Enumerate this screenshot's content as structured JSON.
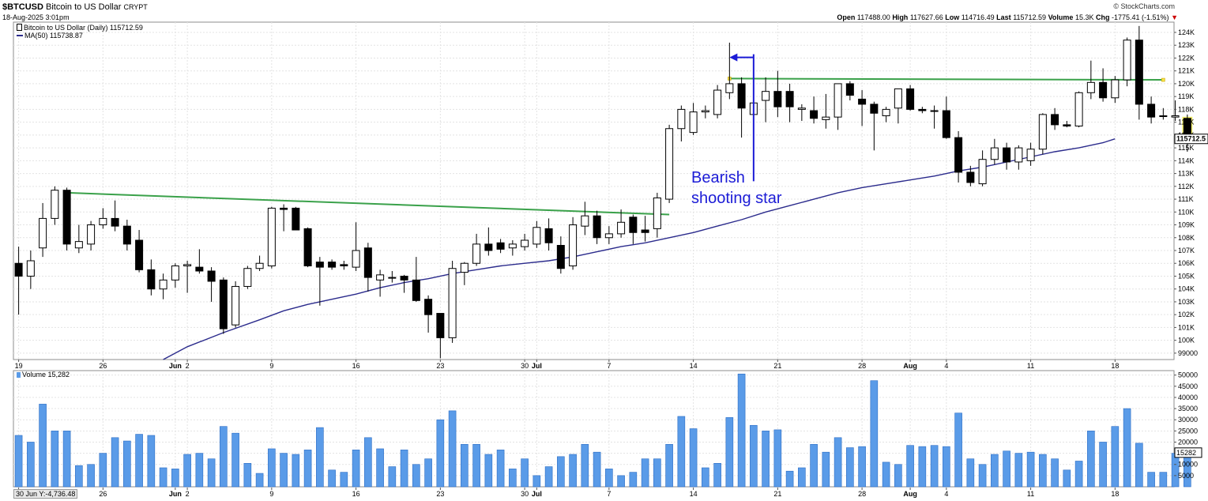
{
  "header": {
    "symbol": "$BTCUSD",
    "name": "Bitcoin to US Dollar",
    "exchange": "CRYPT",
    "date": "18-Aug-2025 3:01pm",
    "brand": "© StockCharts.com",
    "open_label": "Open",
    "open": "117488.00",
    "high_label": "High",
    "high": "117627.66",
    "low_label": "Low",
    "low": "114716.49",
    "last_label": "Last",
    "last": "115712.59",
    "volume_label": "Volume",
    "volume": "15.3K",
    "chg_label": "Chg",
    "chg": "-1775.41 (-1.51%)"
  },
  "legend": {
    "price": "Bitcoin to US Dollar (Daily) 115712.59",
    "ma": "MA(50) 115738.87",
    "volume": "Volume 15,282"
  },
  "annotation": {
    "line1": "Bearish",
    "line2": "shooting star"
  },
  "cursor_readout": "30 Jun Y:-4,736.48",
  "colors": {
    "up_fill": "#ffffff",
    "down_fill": "#000000",
    "ma_line": "#2b2b8c",
    "trend_line": "#3aa14a",
    "volume_bar": "#5a9be8",
    "annotation": "#1b1bd6",
    "highlight": "#f5f06a"
  },
  "chart_data": {
    "type": "candlestick",
    "price_axis": {
      "ylim": [
        98500,
        124800
      ],
      "ticks": [
        99000,
        100000,
        101000,
        102000,
        103000,
        104000,
        105000,
        106000,
        107000,
        108000,
        109000,
        110000,
        111000,
        112000,
        113000,
        114000,
        115000,
        116000,
        117000,
        118000,
        119000,
        120000,
        121000,
        122000,
        123000,
        124000
      ],
      "tick_labels": [
        "99000",
        "100K",
        "101K",
        "102K",
        "103K",
        "104K",
        "105K",
        "106K",
        "107K",
        "108K",
        "109K",
        "110K",
        "111K",
        "112K",
        "113K",
        "114K",
        "115K",
        "116K",
        "117K",
        "118K",
        "119K",
        "120K",
        "121K",
        "122K",
        "123K",
        "124K"
      ],
      "last_label": "115712.5"
    },
    "volume_axis": {
      "ylim": [
        0,
        52000
      ],
      "ticks": [
        5000,
        10000,
        15000,
        20000,
        25000,
        30000,
        35000,
        40000,
        45000,
        50000
      ],
      "tick_labels": [
        "5000",
        "10000",
        "15000",
        "20000",
        "25000",
        "30000",
        "35000",
        "40000",
        "45000",
        "50000"
      ],
      "last_label": "15282"
    },
    "x_labels": [
      {
        "i": 0,
        "label": "19"
      },
      {
        "i": 7,
        "label": "26"
      },
      {
        "i": 13,
        "label": "Jun"
      },
      {
        "i": 14,
        "label": "2"
      },
      {
        "i": 21,
        "label": "9"
      },
      {
        "i": 28,
        "label": "16"
      },
      {
        "i": 35,
        "label": "23"
      },
      {
        "i": 42,
        "label": "30"
      },
      {
        "i": 43,
        "label": "Jul"
      },
      {
        "i": 49,
        "label": "7"
      },
      {
        "i": 56,
        "label": "14"
      },
      {
        "i": 63,
        "label": "21"
      },
      {
        "i": 70,
        "label": "28"
      },
      {
        "i": 74,
        "label": "Aug"
      },
      {
        "i": 77,
        "label": "4"
      },
      {
        "i": 84,
        "label": "11"
      },
      {
        "i": 91,
        "label": "18"
      }
    ],
    "candles": [
      {
        "o": 106000,
        "h": 107300,
        "l": 102000,
        "c": 105000,
        "v": 23000
      },
      {
        "o": 105000,
        "h": 107000,
        "l": 104000,
        "c": 106200,
        "v": 20000
      },
      {
        "o": 107200,
        "h": 110700,
        "l": 106500,
        "c": 109500,
        "v": 37000
      },
      {
        "o": 109500,
        "h": 112000,
        "l": 109000,
        "c": 111700,
        "v": 25000
      },
      {
        "o": 111700,
        "h": 111900,
        "l": 107000,
        "c": 107500,
        "v": 25000
      },
      {
        "o": 107200,
        "h": 109000,
        "l": 106800,
        "c": 107700,
        "v": 9500
      },
      {
        "o": 107500,
        "h": 109300,
        "l": 107000,
        "c": 109000,
        "v": 10000
      },
      {
        "o": 109000,
        "h": 110300,
        "l": 108700,
        "c": 109500,
        "v": 15000
      },
      {
        "o": 109500,
        "h": 110900,
        "l": 108500,
        "c": 108900,
        "v": 22000
      },
      {
        "o": 108900,
        "h": 109400,
        "l": 107000,
        "c": 107500,
        "v": 20500
      },
      {
        "o": 107800,
        "h": 108600,
        "l": 105300,
        "c": 105500,
        "v": 23500
      },
      {
        "o": 105500,
        "h": 106300,
        "l": 103500,
        "c": 104000,
        "v": 23000
      },
      {
        "o": 104000,
        "h": 105200,
        "l": 103200,
        "c": 104700,
        "v": 8500
      },
      {
        "o": 104700,
        "h": 106000,
        "l": 104100,
        "c": 105800,
        "v": 8000
      },
      {
        "o": 105800,
        "h": 106200,
        "l": 103700,
        "c": 105900,
        "v": 14500
      },
      {
        "o": 105700,
        "h": 107100,
        "l": 105200,
        "c": 105400,
        "v": 15000
      },
      {
        "o": 105400,
        "h": 105700,
        "l": 103000,
        "c": 104600,
        "v": 12500
      },
      {
        "o": 104700,
        "h": 104900,
        "l": 100500,
        "c": 100900,
        "v": 27000
      },
      {
        "o": 101200,
        "h": 104600,
        "l": 101000,
        "c": 104200,
        "v": 24000
      },
      {
        "o": 104200,
        "h": 105800,
        "l": 104000,
        "c": 105600,
        "v": 10500
      },
      {
        "o": 105600,
        "h": 106600,
        "l": 105400,
        "c": 106000,
        "v": 6000
      },
      {
        "o": 105800,
        "h": 110400,
        "l": 105600,
        "c": 110300,
        "v": 17000
      },
      {
        "o": 110300,
        "h": 110600,
        "l": 108500,
        "c": 110200,
        "v": 15000
      },
      {
        "o": 110300,
        "h": 110400,
        "l": 108600,
        "c": 108600,
        "v": 14500
      },
      {
        "o": 108700,
        "h": 108800,
        "l": 105700,
        "c": 105800,
        "v": 16500
      },
      {
        "o": 106100,
        "h": 106500,
        "l": 102700,
        "c": 105700,
        "v": 26500
      },
      {
        "o": 106100,
        "h": 106300,
        "l": 105500,
        "c": 105700,
        "v": 7500
      },
      {
        "o": 105900,
        "h": 106200,
        "l": 105500,
        "c": 105800,
        "v": 6500
      },
      {
        "o": 105700,
        "h": 109200,
        "l": 105400,
        "c": 107000,
        "v": 16500
      },
      {
        "o": 107200,
        "h": 107600,
        "l": 103800,
        "c": 104900,
        "v": 22000
      },
      {
        "o": 104700,
        "h": 105500,
        "l": 103400,
        "c": 105100,
        "v": 17000
      },
      {
        "o": 104900,
        "h": 105400,
        "l": 104500,
        "c": 104900,
        "v": 9000
      },
      {
        "o": 105000,
        "h": 105100,
        "l": 103700,
        "c": 104700,
        "v": 16500
      },
      {
        "o": 104700,
        "h": 106500,
        "l": 103000,
        "c": 103100,
        "v": 10000
      },
      {
        "o": 103200,
        "h": 103500,
        "l": 100600,
        "c": 102000,
        "v": 12500
      },
      {
        "o": 102100,
        "h": 102100,
        "l": 98600,
        "c": 100200,
        "v": 30000
      },
      {
        "o": 100200,
        "h": 106200,
        "l": 99800,
        "c": 105600,
        "v": 34000
      },
      {
        "o": 105300,
        "h": 106100,
        "l": 104300,
        "c": 106000,
        "v": 19000
      },
      {
        "o": 106000,
        "h": 108300,
        "l": 105800,
        "c": 107500,
        "v": 19000
      },
      {
        "o": 107500,
        "h": 108800,
        "l": 106600,
        "c": 107000,
        "v": 14500
      },
      {
        "o": 107600,
        "h": 107900,
        "l": 106800,
        "c": 107100,
        "v": 16500
      },
      {
        "o": 107200,
        "h": 107800,
        "l": 106600,
        "c": 107500,
        "v": 8000
      },
      {
        "o": 107300,
        "h": 108300,
        "l": 107000,
        "c": 107800,
        "v": 12500
      },
      {
        "o": 107500,
        "h": 109300,
        "l": 107200,
        "c": 108800,
        "v": 5000
      },
      {
        "o": 108700,
        "h": 109500,
        "l": 107000,
        "c": 107600,
        "v": 9000
      },
      {
        "o": 107400,
        "h": 108100,
        "l": 105200,
        "c": 105600,
        "v": 13500
      },
      {
        "o": 105800,
        "h": 109600,
        "l": 105500,
        "c": 109000,
        "v": 14500
      },
      {
        "o": 108900,
        "h": 110800,
        "l": 108200,
        "c": 109700,
        "v": 19000
      },
      {
        "o": 109700,
        "h": 110100,
        "l": 107500,
        "c": 108000,
        "v": 15500
      },
      {
        "o": 108000,
        "h": 108900,
        "l": 107500,
        "c": 108300,
        "v": 8000
      },
      {
        "o": 108300,
        "h": 110200,
        "l": 108000,
        "c": 109200,
        "v": 5000
      },
      {
        "o": 109600,
        "h": 109800,
        "l": 107500,
        "c": 108400,
        "v": 6500
      },
      {
        "o": 108600,
        "h": 109700,
        "l": 107700,
        "c": 108400,
        "v": 12500
      },
      {
        "o": 108700,
        "h": 111500,
        "l": 108000,
        "c": 111100,
        "v": 12500
      },
      {
        "o": 111000,
        "h": 116800,
        "l": 110700,
        "c": 116500,
        "v": 19000
      },
      {
        "o": 116500,
        "h": 118300,
        "l": 115500,
        "c": 118000,
        "v": 31500
      },
      {
        "o": 116200,
        "h": 118500,
        "l": 116000,
        "c": 117800,
        "v": 26000
      },
      {
        "o": 117800,
        "h": 118300,
        "l": 117300,
        "c": 117900,
        "v": 8500
      },
      {
        "o": 117600,
        "h": 119900,
        "l": 117300,
        "c": 119500,
        "v": 10500
      },
      {
        "o": 119300,
        "h": 123200,
        "l": 118800,
        "c": 120000,
        "v": 31000
      },
      {
        "o": 120000,
        "h": 120500,
        "l": 115800,
        "c": 118100,
        "v": 50500
      },
      {
        "o": 117600,
        "h": 120200,
        "l": 117400,
        "c": 118500,
        "v": 27500
      },
      {
        "o": 118700,
        "h": 120500,
        "l": 117000,
        "c": 119400,
        "v": 25000
      },
      {
        "o": 119400,
        "h": 121000,
        "l": 117400,
        "c": 118200,
        "v": 25500
      },
      {
        "o": 119400,
        "h": 120000,
        "l": 117000,
        "c": 118200,
        "v": 7000
      },
      {
        "o": 118000,
        "h": 118400,
        "l": 117100,
        "c": 118100,
        "v": 8500
      },
      {
        "o": 117900,
        "h": 119000,
        "l": 116900,
        "c": 117300,
        "v": 19000
      },
      {
        "o": 117200,
        "h": 119200,
        "l": 116500,
        "c": 117400,
        "v": 15500
      },
      {
        "o": 117400,
        "h": 120000,
        "l": 116400,
        "c": 120000,
        "v": 22000
      },
      {
        "o": 120000,
        "h": 120200,
        "l": 118700,
        "c": 119100,
        "v": 17500
      },
      {
        "o": 118800,
        "h": 119500,
        "l": 116700,
        "c": 118400,
        "v": 18000
      },
      {
        "o": 118400,
        "h": 118600,
        "l": 114800,
        "c": 117700,
        "v": 47500
      },
      {
        "o": 117500,
        "h": 118200,
        "l": 117000,
        "c": 118000,
        "v": 11000
      },
      {
        "o": 118100,
        "h": 119600,
        "l": 116900,
        "c": 119600,
        "v": 10000
      },
      {
        "o": 119600,
        "h": 119900,
        "l": 117900,
        "c": 118000,
        "v": 18500
      },
      {
        "o": 118000,
        "h": 118200,
        "l": 117700,
        "c": 117900,
        "v": 18000
      },
      {
        "o": 117900,
        "h": 118300,
        "l": 116500,
        "c": 117900,
        "v": 18500
      },
      {
        "o": 117900,
        "h": 119000,
        "l": 115700,
        "c": 115800,
        "v": 18000
      },
      {
        "o": 115800,
        "h": 116300,
        "l": 112300,
        "c": 113100,
        "v": 33000
      },
      {
        "o": 113100,
        "h": 113600,
        "l": 112000,
        "c": 112300,
        "v": 12500
      },
      {
        "o": 112200,
        "h": 114800,
        "l": 112000,
        "c": 114100,
        "v": 10000
      },
      {
        "o": 114100,
        "h": 115700,
        "l": 113700,
        "c": 115000,
        "v": 14500
      },
      {
        "o": 115000,
        "h": 115400,
        "l": 113300,
        "c": 113900,
        "v": 16000
      },
      {
        "o": 113900,
        "h": 115200,
        "l": 113300,
        "c": 115000,
        "v": 15000
      },
      {
        "o": 114000,
        "h": 115400,
        "l": 113600,
        "c": 114900,
        "v": 15500
      },
      {
        "o": 114900,
        "h": 117700,
        "l": 114500,
        "c": 117600,
        "v": 14500
      },
      {
        "o": 117600,
        "h": 118100,
        "l": 116400,
        "c": 116800,
        "v": 12500
      },
      {
        "o": 116800,
        "h": 117100,
        "l": 116600,
        "c": 116700,
        "v": 7500
      },
      {
        "o": 116700,
        "h": 119400,
        "l": 116600,
        "c": 119300,
        "v": 11500
      },
      {
        "o": 119300,
        "h": 121800,
        "l": 118800,
        "c": 120100,
        "v": 25000
      },
      {
        "o": 120100,
        "h": 121200,
        "l": 118600,
        "c": 118900,
        "v": 20000
      },
      {
        "o": 118900,
        "h": 120600,
        "l": 118500,
        "c": 120300,
        "v": 27000
      },
      {
        "o": 120300,
        "h": 123600,
        "l": 119800,
        "c": 123400,
        "v": 35000
      },
      {
        "o": 123400,
        "h": 124500,
        "l": 117200,
        "c": 118400,
        "v": 19500
      },
      {
        "o": 118400,
        "h": 119000,
        "l": 116900,
        "c": 117400,
        "v": 6500
      },
      {
        "o": 117500,
        "h": 118100,
        "l": 117200,
        "c": 117500,
        "v": 6500
      },
      {
        "o": 117400,
        "h": 118700,
        "l": 117100,
        "c": 117500,
        "v": 15000
      },
      {
        "o": 117300,
        "h": 117600,
        "l": 114700,
        "c": 115700,
        "v": 15282
      }
    ],
    "ma50": [
      [
        12,
        98500
      ],
      [
        14,
        99500
      ],
      [
        17,
        100600
      ],
      [
        20,
        101600
      ],
      [
        22,
        102300
      ],
      [
        24,
        102800
      ],
      [
        26,
        103200
      ],
      [
        28,
        103600
      ],
      [
        30,
        104100
      ],
      [
        32,
        104500
      ],
      [
        34,
        104800
      ],
      [
        36,
        105200
      ],
      [
        38,
        105500
      ],
      [
        40,
        105800
      ],
      [
        42,
        106000
      ],
      [
        44,
        106200
      ],
      [
        46,
        106500
      ],
      [
        48,
        106900
      ],
      [
        50,
        107300
      ],
      [
        52,
        107600
      ],
      [
        54,
        108000
      ],
      [
        56,
        108400
      ],
      [
        58,
        108900
      ],
      [
        60,
        109400
      ],
      [
        62,
        110000
      ],
      [
        64,
        110500
      ],
      [
        66,
        111000
      ],
      [
        68,
        111500
      ],
      [
        70,
        111900
      ],
      [
        72,
        112200
      ],
      [
        74,
        112500
      ],
      [
        76,
        112800
      ],
      [
        78,
        113200
      ],
      [
        80,
        113500
      ],
      [
        82,
        113900
      ],
      [
        84,
        114300
      ],
      [
        86,
        114700
      ],
      [
        88,
        115000
      ],
      [
        90,
        115400
      ],
      [
        91,
        115700
      ]
    ],
    "trendlines": [
      {
        "from": [
          4,
          111500
        ],
        "to": [
          54,
          109800
        ],
        "role": "resistance-1"
      },
      {
        "from": [
          59,
          120400
        ],
        "to": [
          95,
          120300
        ],
        "role": "resistance-2"
      }
    ],
    "arrow_marker": {
      "x_index": 61,
      "from_price": 122300,
      "to_price": 112400,
      "arrow_to_index": 59
    },
    "highlight_index": 97
  }
}
